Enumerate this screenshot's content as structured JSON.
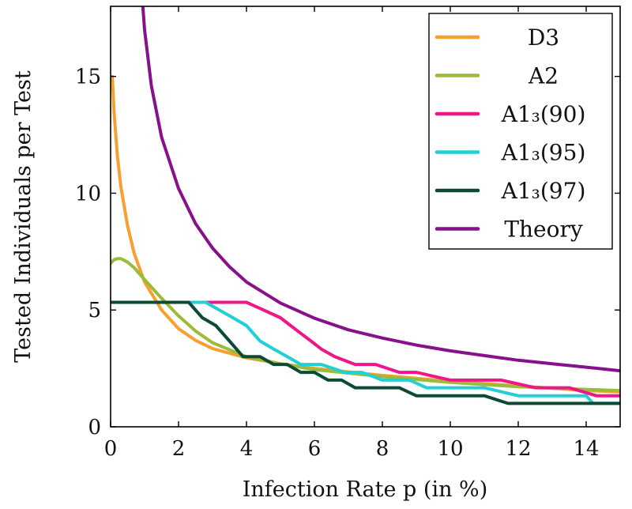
{
  "chart_data": {
    "type": "line",
    "xlabel": "Infection Rate p (in %)",
    "ylabel": "Tested Individuals per Test",
    "xlim": [
      0,
      15
    ],
    "ylim": [
      0,
      18
    ],
    "xticks": [
      0,
      2,
      4,
      6,
      8,
      10,
      12,
      14
    ],
    "yticks": [
      0,
      5,
      10,
      15
    ],
    "grid": false,
    "legend_position": "top-right",
    "series": [
      {
        "name": "D3",
        "color": "#f7a030",
        "x": [
          0.05,
          0.1,
          0.2,
          0.3,
          0.5,
          0.7,
          1.0,
          1.5,
          2.0,
          2.5,
          3.0,
          4.0,
          5.0,
          6.0,
          8.0,
          10.0,
          12.0,
          14.0,
          15.0
        ],
        "y": [
          15.0,
          13.5,
          11.6,
          10.3,
          8.6,
          7.4,
          6.2,
          5.0,
          4.2,
          3.7,
          3.35,
          2.95,
          2.7,
          2.5,
          2.2,
          1.95,
          1.75,
          1.55,
          1.5
        ]
      },
      {
        "name": "A2",
        "color": "#9bbb3a",
        "x": [
          0.0,
          0.1,
          0.2,
          0.3,
          0.5,
          0.7,
          1.0,
          1.5,
          2.0,
          2.5,
          3.0,
          4.0,
          5.0,
          6.0,
          8.0,
          10.0,
          12.0,
          14.0,
          15.0
        ],
        "y": [
          7.0,
          7.15,
          7.2,
          7.2,
          7.05,
          6.8,
          6.3,
          5.5,
          4.75,
          4.1,
          3.6,
          3.0,
          2.7,
          2.45,
          2.15,
          1.9,
          1.72,
          1.6,
          1.55
        ]
      },
      {
        "name": "A1_3(90)",
        "legend_label": "A1₃(90)",
        "color": "#f0168a",
        "x": [
          0,
          4.0,
          4.5,
          5.0,
          5.3,
          5.6,
          5.9,
          6.2,
          6.6,
          7.2,
          7.8,
          8.5,
          9.0,
          10.0,
          11.5,
          12.5,
          13.5,
          14.3,
          15.0
        ],
        "y": [
          5.33,
          5.33,
          5.0,
          4.67,
          4.33,
          4.0,
          3.67,
          3.33,
          3.0,
          2.67,
          2.67,
          2.33,
          2.33,
          2.0,
          2.0,
          1.67,
          1.67,
          1.33,
          1.33
        ]
      },
      {
        "name": "A1_3(95)",
        "legend_label": "A1₃(95)",
        "color": "#22cfd6",
        "x": [
          0,
          2.8,
          3.2,
          3.6,
          4.0,
          4.4,
          4.8,
          5.2,
          5.6,
          6.2,
          6.9,
          7.4,
          8.0,
          8.8,
          9.3,
          10.0,
          11.0,
          12.0,
          13.0,
          14.0,
          14.2,
          15.0
        ],
        "y": [
          5.33,
          5.33,
          5.0,
          4.67,
          4.33,
          3.67,
          3.33,
          3.0,
          2.67,
          2.67,
          2.33,
          2.33,
          2.0,
          2.0,
          1.67,
          1.67,
          1.67,
          1.33,
          1.33,
          1.33,
          1.0,
          1.0
        ]
      },
      {
        "name": "A1_3(97)",
        "legend_label": "A1₃(97)",
        "color": "#0c4a36",
        "x": [
          0,
          2.3,
          2.7,
          3.1,
          3.5,
          3.9,
          4.4,
          4.8,
          5.2,
          5.6,
          6.0,
          6.4,
          6.8,
          7.2,
          7.6,
          8.0,
          8.5,
          9.0,
          9.5,
          10.0,
          11.0,
          11.7,
          12.0,
          13.0,
          14.0,
          15.0
        ],
        "y": [
          5.33,
          5.33,
          4.67,
          4.33,
          3.67,
          3.0,
          3.0,
          2.67,
          2.67,
          2.33,
          2.33,
          2.0,
          2.0,
          1.67,
          1.67,
          1.67,
          1.67,
          1.33,
          1.33,
          1.33,
          1.33,
          1.0,
          1.0,
          1.0,
          1.0,
          1.0
        ]
      },
      {
        "name": "Theory",
        "color": "#86118a",
        "x": [
          0.95,
          1.0,
          1.2,
          1.5,
          2.0,
          2.5,
          3.0,
          3.5,
          4.0,
          5.0,
          6.0,
          7.0,
          8.0,
          9.0,
          10.0,
          11.0,
          12.0,
          13.0,
          14.0,
          15.0
        ],
        "y": [
          18.0,
          17.0,
          14.6,
          12.4,
          10.2,
          8.7,
          7.65,
          6.85,
          6.2,
          5.3,
          4.65,
          4.15,
          3.8,
          3.5,
          3.25,
          3.05,
          2.85,
          2.7,
          2.55,
          2.4
        ]
      }
    ]
  }
}
